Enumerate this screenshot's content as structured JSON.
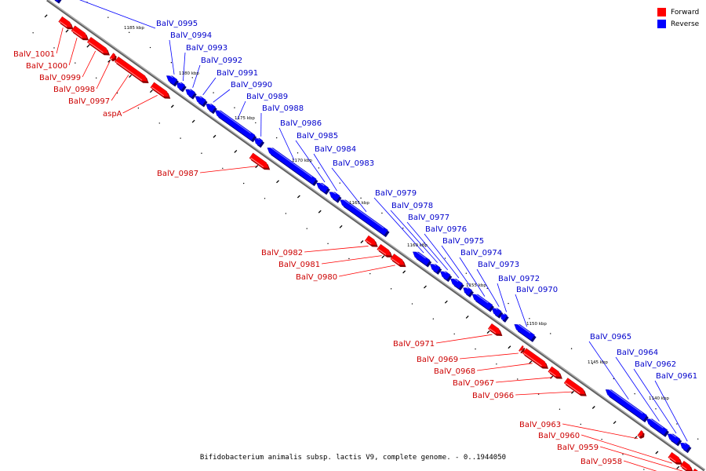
{
  "legend": {
    "forward": {
      "label": "Forward",
      "color": "#ff0000"
    },
    "reverse": {
      "label": "Reverse",
      "color": "#0000ff"
    }
  },
  "caption": "Bifidobacterium animalis subsp. lactis V9, complete genome. - 0..1944050",
  "scale_markers": [
    "1185 kbp",
    "1180 kbp",
    "1175 kbp",
    "1170 kbp",
    "1165 kbp",
    "1160 kbp",
    "1155 kbp",
    "1150 kbp",
    "1145 kbp",
    "1140 kbp"
  ],
  "genes": {
    "forward": [
      "BalV_1001",
      "BalV_1000",
      "BalV_0999",
      "BalV_0998",
      "BalV_0997",
      "aspA",
      "BalV_0987",
      "BalV_0982",
      "BalV_0981",
      "BalV_0980",
      "BalV_0971",
      "BalV_0969",
      "BalV_0968",
      "BalV_0967",
      "BalV_0966",
      "BalV_0963",
      "BalV_0960",
      "BalV_0959",
      "BalV_0958"
    ],
    "reverse": [
      "BalV_0995",
      "BalV_0994",
      "BalV_0993",
      "BalV_0992",
      "BalV_0991",
      "BalV_0990",
      "BalV_0989",
      "BalV_0988",
      "BalV_0986",
      "BalV_0985",
      "BalV_0984",
      "BalV_0983",
      "BalV_0979",
      "BalV_0978",
      "BalV_0977",
      "BalV_0976",
      "BalV_0975",
      "BalV_0974",
      "BalV_0973",
      "BalV_0972",
      "BalV_0970",
      "BalV_0965",
      "BalV_0964",
      "BalV_0962",
      "BalV_0961"
    ]
  },
  "colors": {
    "forward": "#ff0000",
    "reverse": "#0000ff",
    "backbone": "#888888",
    "forward_text": "#cc0000",
    "reverse_text": "#0000cc"
  }
}
